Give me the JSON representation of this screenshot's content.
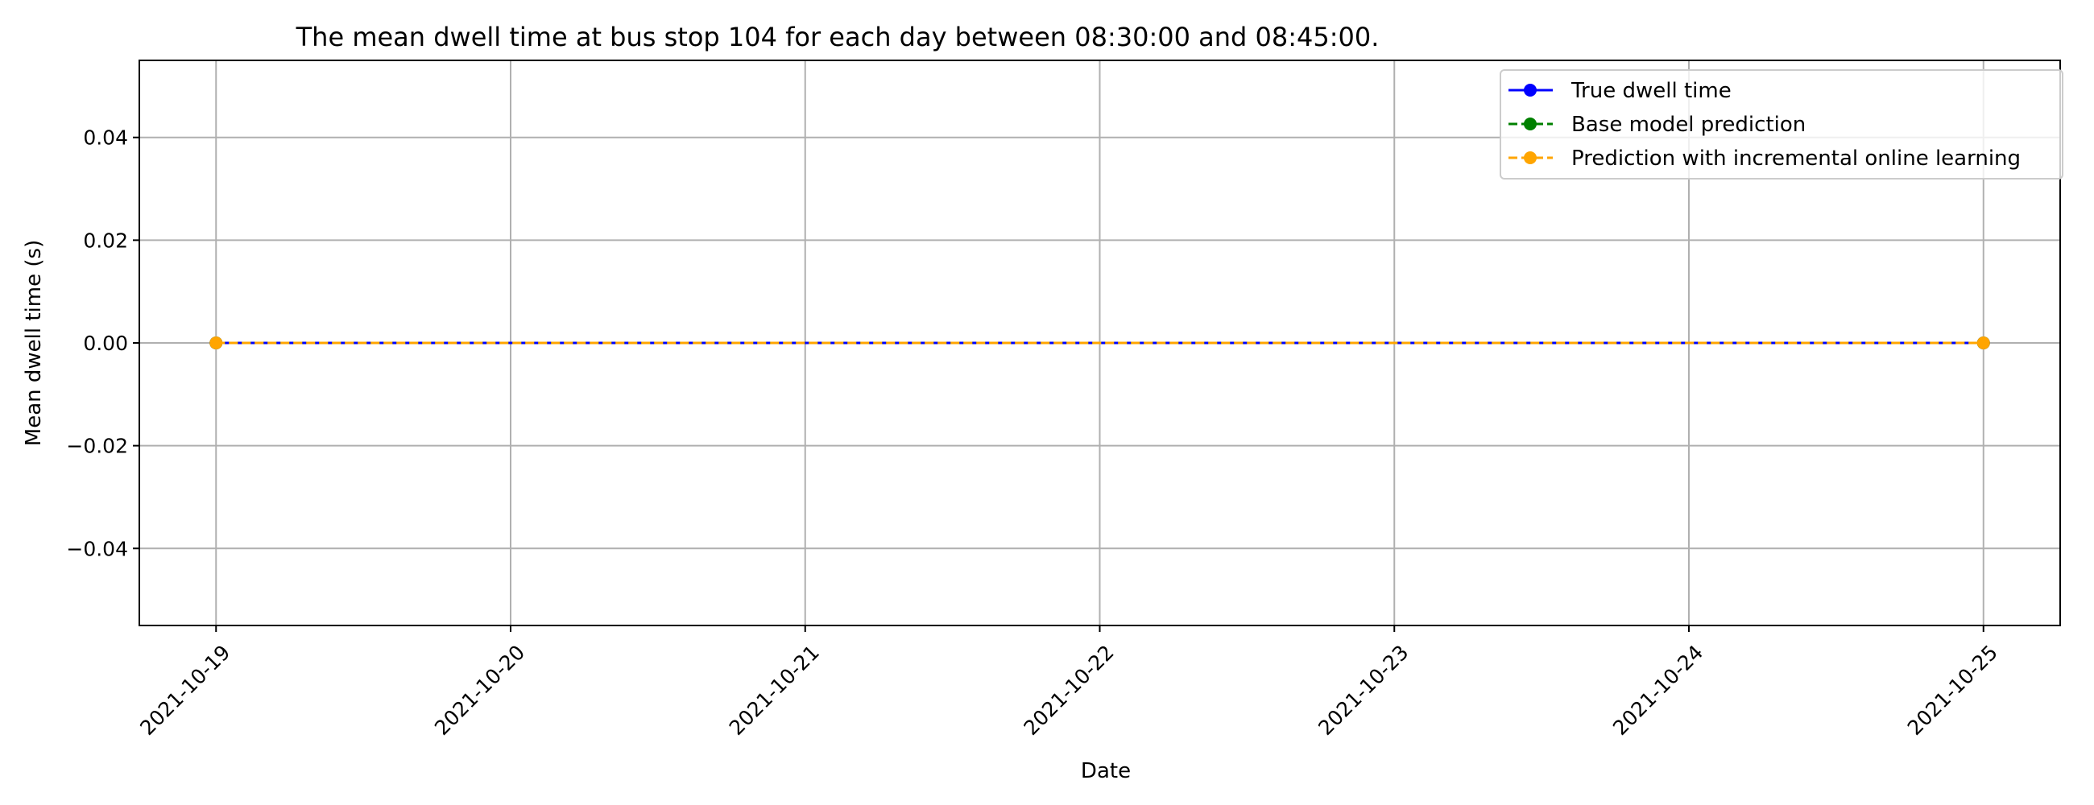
{
  "chart_data": {
    "type": "line",
    "title": "The mean dwell time at bus stop 104 for each day between 08:30:00 and 08:45:00.",
    "xlabel": "Date",
    "ylabel": "Mean dwell time (s)",
    "x_ticks": [
      "2021-10-19",
      "2021-10-20",
      "2021-10-21",
      "2021-10-22",
      "2021-10-23",
      "2021-10-24",
      "2021-10-25"
    ],
    "y_ticks": [
      "−0.04",
      "−0.02",
      "0.00",
      "0.02",
      "0.04"
    ],
    "y_tick_values": [
      -0.04,
      -0.02,
      0.0,
      0.02,
      0.04
    ],
    "ylim": [
      -0.055,
      0.055
    ],
    "xlim": [
      "2021-10-18 17:45",
      "2021-10-25 06:15"
    ],
    "grid": true,
    "legend_position": "top-right",
    "series": [
      {
        "name": "True dwell time",
        "color": "#0000ff",
        "linestyle": "solid",
        "marker": "circle",
        "x": [
          "2021-10-19",
          "2021-10-25"
        ],
        "y": [
          0.0,
          0.0
        ]
      },
      {
        "name": "Base model prediction",
        "color": "#008000",
        "linestyle": "dashed",
        "marker": "circle",
        "x": [
          "2021-10-19",
          "2021-10-25"
        ],
        "y": [
          0.0,
          0.0
        ]
      },
      {
        "name": "Prediction with incremental online learning",
        "color": "#ffa500",
        "linestyle": "dashed",
        "marker": "circle",
        "x": [
          "2021-10-19",
          "2021-10-25"
        ],
        "y": [
          0.0,
          0.0
        ]
      }
    ]
  }
}
